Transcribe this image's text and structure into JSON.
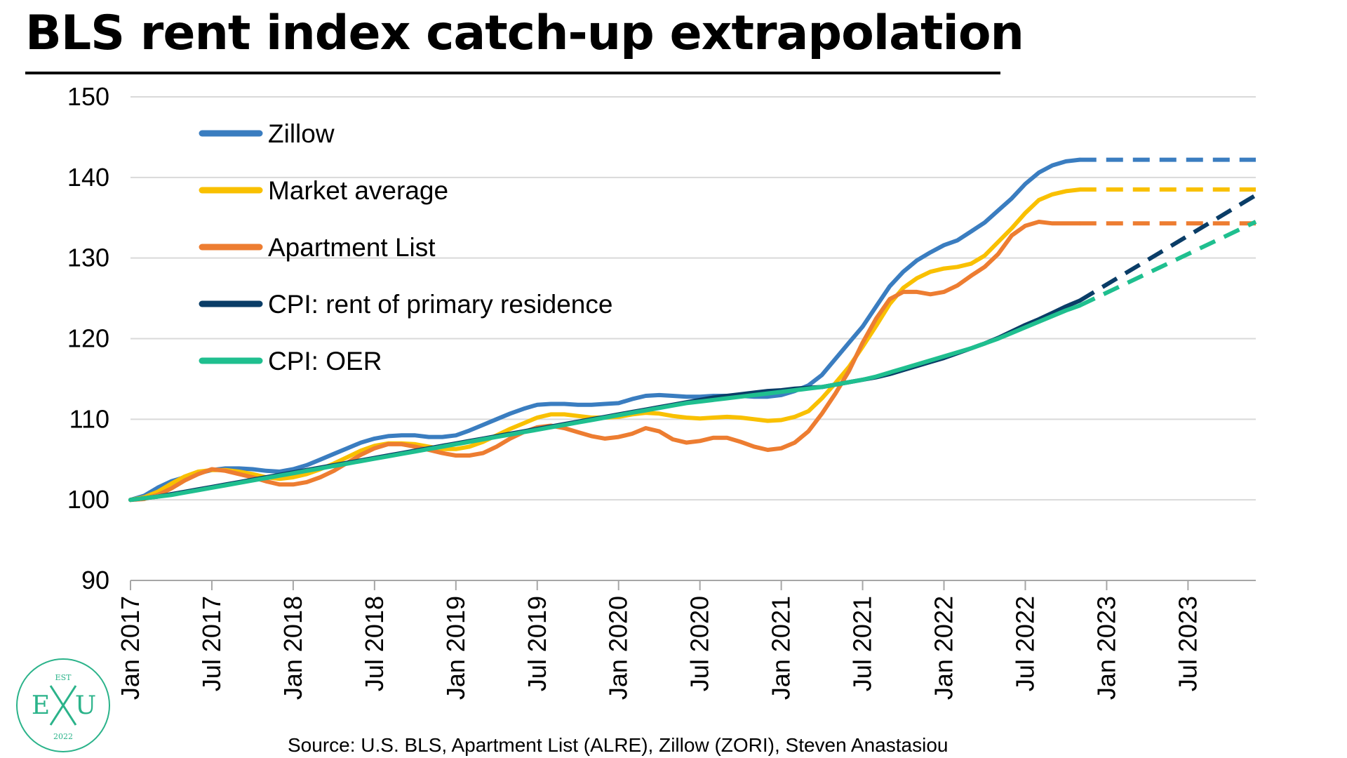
{
  "source": "Source: U.S. BLS, Apartment List (ALRE), Zillow (ZORI), Steven Anastasiou",
  "logo": {
    "text_top": "EST",
    "left_letter": "E",
    "right_letter": "U",
    "year": "2022",
    "color": "#2bb38a"
  },
  "chart_data": {
    "type": "line",
    "title": "BLS rent index catch-up extrapolation",
    "xlabel": "",
    "ylabel": "",
    "ylim": [
      90,
      150
    ],
    "yticks": [
      90,
      100,
      110,
      120,
      130,
      140,
      150
    ],
    "x_start": "Jan 2017",
    "x_end": "Dec 2023",
    "xticks": [
      "Jan 2017",
      "Jul 2017",
      "Jan 2018",
      "Jul 2018",
      "Jan 2019",
      "Jul 2019",
      "Jan 2020",
      "Jul 2020",
      "Jan 2021",
      "Jul 2021",
      "Jan 2022",
      "Jul 2022",
      "Jan 2023",
      "Jul 2023"
    ],
    "grid": true,
    "legend_position": "top-left",
    "series": [
      {
        "name": "Zillow",
        "color": "#3a7dc0",
        "observed": [
          100,
          100.5,
          101.5,
          102.3,
          102.8,
          103.3,
          103.7,
          103.9,
          103.9,
          103.8,
          103.6,
          103.5,
          103.8,
          104.3,
          105,
          105.7,
          106.4,
          107.1,
          107.6,
          107.9,
          108,
          108,
          107.8,
          107.8,
          108,
          108.6,
          109.3,
          110,
          110.7,
          111.3,
          111.8,
          111.9,
          111.9,
          111.8,
          111.8,
          111.9,
          112,
          112.5,
          112.9,
          113,
          112.9,
          112.8,
          112.8,
          112.9,
          112.9,
          112.9,
          112.8,
          112.8,
          113,
          113.5,
          114.2,
          115.5,
          117.5,
          119.5,
          121.5,
          124,
          126.5,
          128.3,
          129.7,
          130.7,
          131.6,
          132.2,
          133.3,
          134.4,
          135.9,
          137.4,
          139.2,
          140.6,
          141.5,
          142,
          142.2
        ],
        "projected_from": "Nov 2022",
        "projected_to": "Dec 2023",
        "projected": [
          142.2,
          142.2
        ]
      },
      {
        "name": "Market average",
        "color": "#f9c000",
        "observed": [
          100,
          100.3,
          101,
          102,
          102.9,
          103.5,
          103.7,
          103.7,
          103.5,
          103.2,
          102.8,
          102.6,
          102.8,
          103.2,
          103.8,
          104.5,
          105.3,
          106.1,
          106.7,
          107,
          107,
          106.9,
          106.6,
          106.3,
          106.3,
          106.6,
          107.2,
          108,
          108.8,
          109.5,
          110.2,
          110.6,
          110.6,
          110.4,
          110.2,
          110.2,
          110.3,
          110.6,
          110.8,
          110.7,
          110.4,
          110.2,
          110.1,
          110.2,
          110.3,
          110.2,
          110,
          109.8,
          109.9,
          110.3,
          111,
          112.6,
          114.5,
          116.5,
          119,
          121.6,
          124.3,
          126.3,
          127.5,
          128.3,
          128.7,
          128.9,
          129.3,
          130.3,
          132,
          133.7,
          135.6,
          137.2,
          137.9,
          138.3,
          138.5
        ],
        "projected_from": "Nov 2022",
        "projected_to": "Dec 2023",
        "projected": [
          138.5,
          138.5
        ]
      },
      {
        "name": "Apartment List",
        "color": "#ed7d31",
        "observed": [
          100,
          100.1,
          100.6,
          101.4,
          102.4,
          103.2,
          103.8,
          103.6,
          103.2,
          102.8,
          102.3,
          101.9,
          101.9,
          102.2,
          102.8,
          103.6,
          104.6,
          105.6,
          106.4,
          106.9,
          106.9,
          106.6,
          106.2,
          105.8,
          105.5,
          105.5,
          105.8,
          106.6,
          107.6,
          108.4,
          109,
          109.2,
          108.9,
          108.4,
          107.9,
          107.6,
          107.8,
          108.2,
          108.9,
          108.5,
          107.5,
          107.1,
          107.3,
          107.7,
          107.7,
          107.2,
          106.6,
          106.2,
          106.4,
          107.1,
          108.5,
          110.7,
          113.2,
          116,
          119.5,
          122.5,
          124.9,
          125.8,
          125.8,
          125.5,
          125.8,
          126.6,
          127.8,
          128.9,
          130.5,
          132.8,
          134,
          134.5,
          134.3,
          134.3,
          134.3
        ],
        "projected_from": "Nov 2022",
        "projected_to": "Dec 2023",
        "projected": [
          134.3,
          134.3
        ]
      },
      {
        "name": "CPI: rent of primary residence",
        "color": "#0a3d67",
        "observed": [
          100,
          100.2,
          100.4,
          100.7,
          101,
          101.3,
          101.6,
          101.9,
          102.2,
          102.5,
          102.8,
          103.1,
          103.4,
          103.7,
          104,
          104.3,
          104.6,
          104.9,
          105.2,
          105.5,
          105.8,
          106.1,
          106.4,
          106.7,
          107,
          107.3,
          107.6,
          107.9,
          108.2,
          108.5,
          108.8,
          109.1,
          109.4,
          109.7,
          110,
          110.3,
          110.6,
          110.9,
          111.2,
          111.5,
          111.8,
          112.1,
          112.4,
          112.7,
          112.9,
          113.1,
          113.3,
          113.5,
          113.6,
          113.8,
          113.9,
          114,
          114.3,
          114.6,
          114.9,
          115.2,
          115.6,
          116.1,
          116.6,
          117.1,
          117.6,
          118.2,
          118.8,
          119.4,
          120.1,
          120.9,
          121.7,
          122.4,
          123.2,
          124,
          124.7
        ],
        "projected_from": "Nov 2022",
        "projected_to": "Dec 2023",
        "projected": [
          124.7,
          137.8
        ]
      },
      {
        "name": "CPI: OER",
        "color": "#1fbf8f",
        "observed": [
          100,
          100.2,
          100.4,
          100.6,
          100.9,
          101.2,
          101.5,
          101.8,
          102.1,
          102.4,
          102.7,
          103,
          103.3,
          103.6,
          103.9,
          104.2,
          104.5,
          104.8,
          105.1,
          105.4,
          105.7,
          106,
          106.3,
          106.6,
          106.9,
          107.2,
          107.5,
          107.8,
          108.1,
          108.4,
          108.7,
          109,
          109.3,
          109.6,
          109.9,
          110.2,
          110.5,
          110.8,
          111.1,
          111.4,
          111.7,
          112,
          112.2,
          112.4,
          112.6,
          112.8,
          113,
          113.2,
          113.4,
          113.6,
          113.8,
          114,
          114.3,
          114.6,
          114.9,
          115.3,
          115.8,
          116.3,
          116.8,
          117.3,
          117.8,
          118.3,
          118.8,
          119.4,
          120,
          120.7,
          121.4,
          122.1,
          122.8,
          123.5,
          124.1
        ],
        "projected_from": "Nov 2022",
        "projected_to": "Dec 2023",
        "projected": [
          124.1,
          134.5
        ]
      }
    ]
  }
}
